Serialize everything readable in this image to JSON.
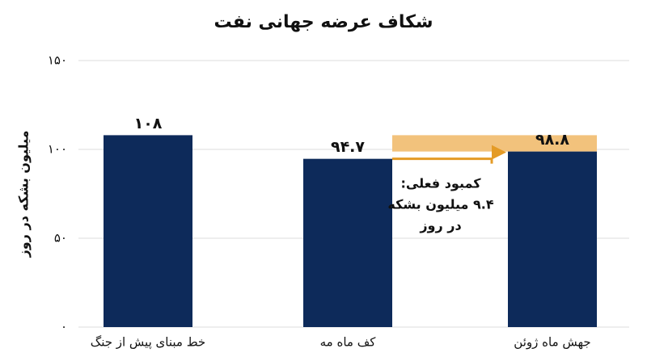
{
  "chart_data": {
    "type": "bar",
    "title": "شکاف عرضه جهانی نفت",
    "y_label": "میلیون بشکه در روز",
    "categories": [
      "خط مبنای پیش از جنگ",
      "کف ماه مه",
      "جهش ماه ژوئن"
    ],
    "values": [
      108,
      94.7,
      98.8
    ],
    "value_labels": [
      "۱۰۸",
      "۹۴.۷",
      "۹۸.۸"
    ],
    "color": "#0d2a5a",
    "gap_color": "#f2c27c",
    "arrow_color": "#e49b26",
    "annotation": [
      "کمبود فعلی:",
      "۹.۴ میلیون بشکه",
      "در روز"
    ],
    "ylim": [
      0,
      150
    ],
    "yticks": [
      {
        "value": 0,
        "label": "۰"
      },
      {
        "value": 50,
        "label": "۵۰"
      },
      {
        "value": 100,
        "label": "۱۰۰"
      },
      {
        "value": 150,
        "label": "۱۵۰"
      }
    ],
    "grid": true
  }
}
